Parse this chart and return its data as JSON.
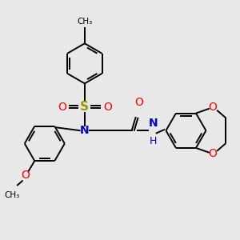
{
  "bg_color": "#e8e8e8",
  "bond_color": "#000000",
  "N_color": "#0000cc",
  "O_color": "#ff0000",
  "S_color": "#999900",
  "line_width": 1.4,
  "figsize": [
    3.0,
    3.0
  ],
  "dpi": 100,
  "xlim": [
    0,
    10
  ],
  "ylim": [
    0,
    10
  ]
}
